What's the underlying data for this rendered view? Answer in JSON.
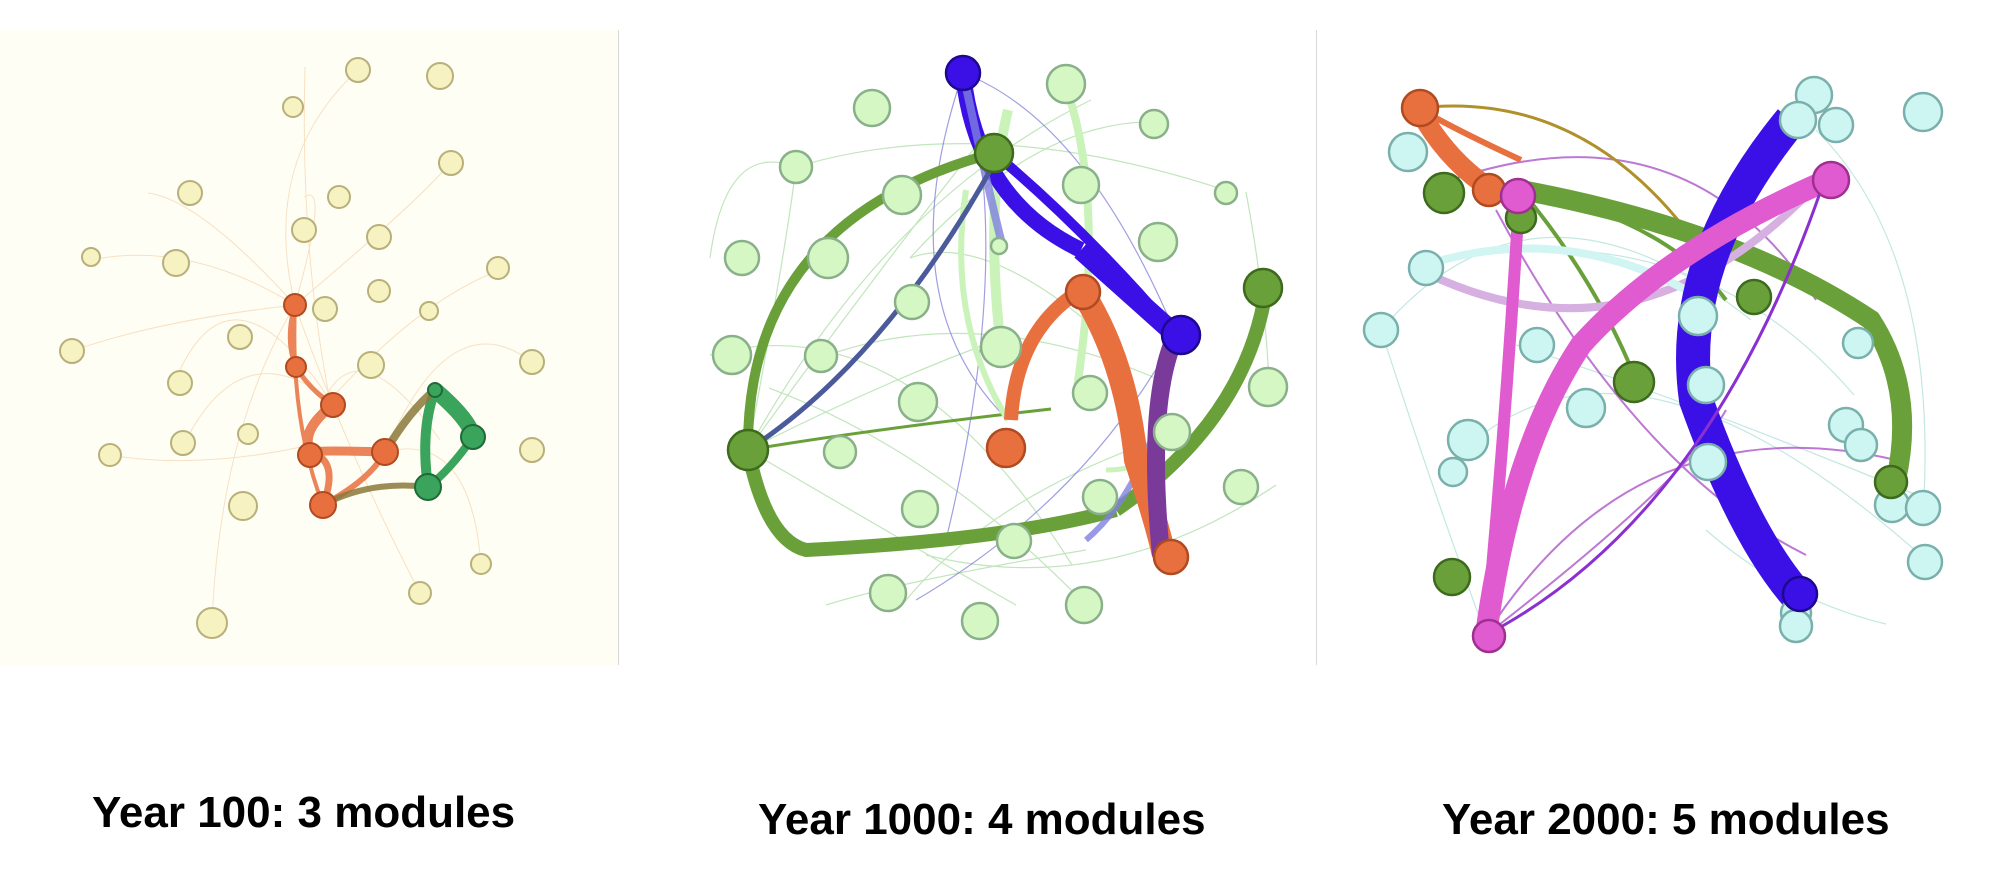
{
  "panels": [
    {
      "caption": "Year 100: 3 modules",
      "colors": {
        "background": "#fffef4",
        "neutral": "#f7f2c2",
        "module_a": "#e8703f",
        "module_b": "#3aa35c",
        "module_ab": "#8a7a3a"
      }
    },
    {
      "caption": "Year 1000: 4 modules",
      "colors": {
        "background": "#ffffff",
        "neutral": "#d4f7c4",
        "module_a": "#6aa03a",
        "module_b": "#3a10e6",
        "module_c": "#e8703f",
        "module_d": "#7a3a9a",
        "module_e": "#4a5a9a"
      }
    },
    {
      "caption": "Year 2000: 5 modules",
      "colors": {
        "background": "#ffffff",
        "neutral": "#cdf6f2",
        "module_a": "#e8703f",
        "module_b": "#6aa03a",
        "module_c": "#3a10e6",
        "module_d": "#e05ad0",
        "module_e": "#d7b0e2"
      }
    }
  ]
}
